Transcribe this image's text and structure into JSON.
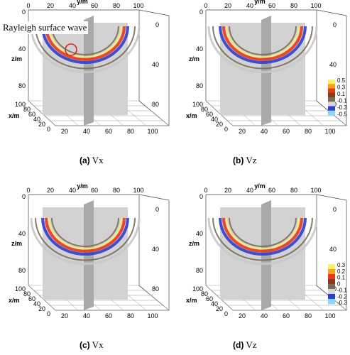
{
  "panels": [
    {
      "caption_letter": "(a)",
      "caption_var": "Vx",
      "y_label": "y/m",
      "z_label": "z/m",
      "x_label": "x/m",
      "y_ticks": [
        "0",
        "20",
        "40",
        "60",
        "80",
        "100"
      ],
      "z_ticks_left": [
        "0",
        "40",
        "80"
      ],
      "z_ticks_right": [
        "0",
        "40",
        "80"
      ],
      "x_ticks": [
        "100",
        "80",
        "60",
        "40",
        "20",
        "0"
      ],
      "bottom_ticks": [
        "20",
        "40",
        "60",
        "80",
        "100"
      ]
    },
    {
      "caption_letter": "(b)",
      "caption_var": "Vz",
      "y_label": "y/m",
      "z_label": "z/m",
      "x_label": "x/m",
      "y_ticks": [
        "0",
        "20",
        "40",
        "60",
        "80",
        "100"
      ],
      "z_ticks_left": [
        "0",
        "40",
        "80"
      ],
      "z_ticks_right": [
        "0",
        "40",
        "80"
      ],
      "x_ticks": [
        "100",
        "80",
        "60",
        "40",
        "20",
        "0"
      ],
      "bottom_ticks": [
        "20",
        "40",
        "60",
        "80",
        "100"
      ]
    },
    {
      "caption_letter": "(c)",
      "caption_var": "Vx",
      "y_label": "y/m",
      "z_label": "z/m",
      "x_label": "x/m",
      "y_ticks": [
        "0",
        "20",
        "40",
        "60",
        "80",
        "100"
      ],
      "z_ticks_left": [
        "0",
        "40",
        "80"
      ],
      "z_ticks_right": [
        "0",
        "40",
        "80"
      ],
      "x_ticks": [
        "100",
        "80",
        "60",
        "40",
        "20",
        "0"
      ],
      "bottom_ticks": [
        "20",
        "40",
        "60",
        "80",
        "100"
      ]
    },
    {
      "caption_letter": "(d)",
      "caption_var": "Vz",
      "y_label": "y/m",
      "z_label": "z/m",
      "x_label": "x/m",
      "y_ticks": [
        "0",
        "20",
        "40",
        "60",
        "80",
        "100"
      ],
      "z_ticks_left": [
        "0",
        "40",
        "80"
      ],
      "z_ticks_right": [
        "0",
        "40",
        "80"
      ],
      "x_ticks": [
        "100",
        "80",
        "60",
        "40",
        "20",
        "0"
      ],
      "bottom_ticks": [
        "20",
        "40",
        "60",
        "80",
        "100"
      ]
    }
  ],
  "annotation": "Rayleigh surface wave",
  "colorbar_top": [
    "0.5",
    "0.3",
    "0.1",
    "-0.1",
    "-0.3",
    "-0.5"
  ],
  "colorbar_bottom": [
    "0.3",
    "0.2",
    "0.1",
    "0",
    "-0.1",
    "-0.2",
    "-0.3"
  ],
  "colors": {
    "positive_strong": "#e8371c",
    "positive_mid": "#f7a21a",
    "positive_weak": "#fff06a",
    "neutral": "#c8c8c8",
    "negative_weak": "#7a6b58",
    "negative_mid": "#2f3fcf",
    "negative_strong": "#8ad8ff",
    "highlight_circle": "#e02020"
  }
}
